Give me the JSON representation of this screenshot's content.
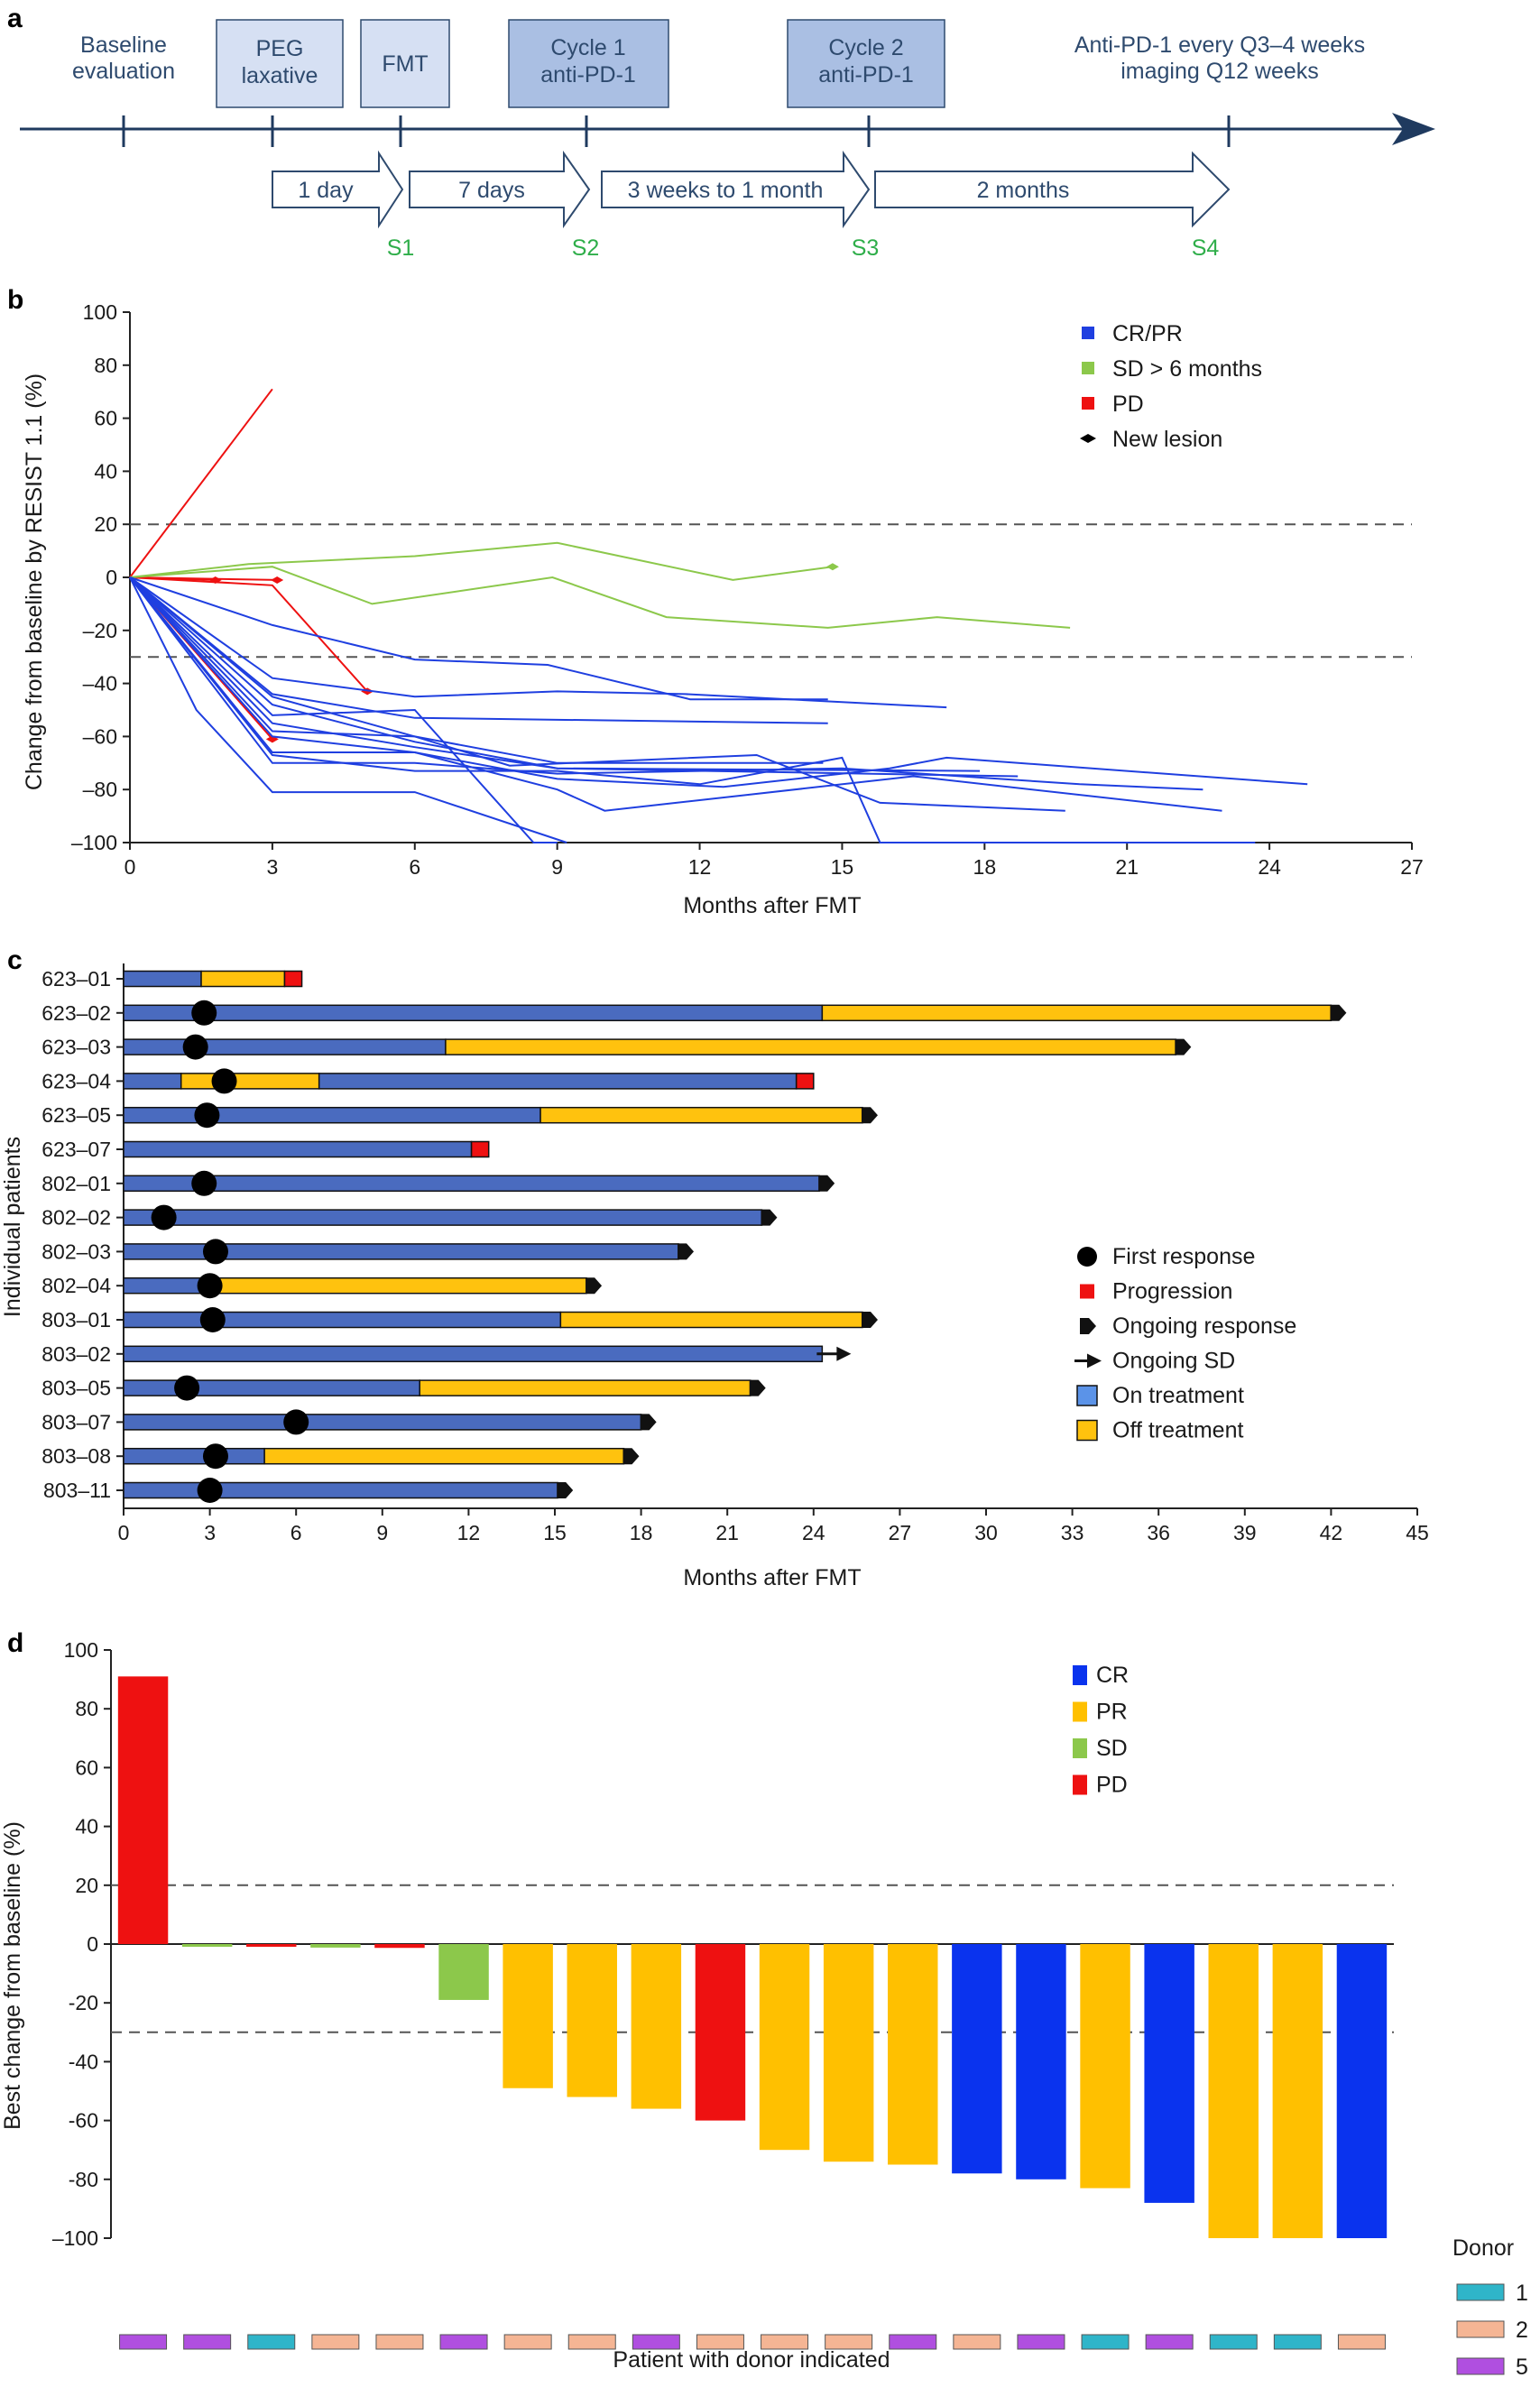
{
  "panels": {
    "a": {
      "letter": "a",
      "timeline_labels": {
        "baseline": [
          "Baseline",
          "evaluation"
        ],
        "peg": [
          "PEG",
          "laxative"
        ],
        "fmt": "FMT",
        "cycle1": [
          "Cycle 1",
          "anti-PD-1"
        ],
        "cycle2": [
          "Cycle 2",
          "anti-PD-1"
        ],
        "maintenance": [
          "Anti-PD-1 every Q3–4 weeks",
          "imaging Q12 weeks"
        ]
      },
      "intervals": [
        "1 day",
        "7 days",
        "3 weeks to 1 month",
        "2 months"
      ],
      "samples": [
        "S1",
        "S2",
        "S3",
        "S4"
      ]
    },
    "b": {
      "letter": "b"
    },
    "c": {
      "letter": "c"
    },
    "d": {
      "letter": "d"
    }
  },
  "colors": {
    "crpr_blue": "#1f3fe0",
    "sd_green": "#8cc84b",
    "pd_red": "#ee1111",
    "bar_blue": "#4a6bbf",
    "bar_orange": "#ffc20e",
    "pr_orange": "#ffc000",
    "cr_blue": "#0a33ee",
    "donor1": "#2fb5c9",
    "donor2": "#f5b594",
    "donor5": "#b04fe0",
    "timeline": "#1f3a5f"
  },
  "chart_data": [
    {
      "id": "b",
      "type": "line",
      "xlabel": "Months after FMT",
      "ylabel": "Change from baseline by RESIST 1.1 (%)",
      "xlim": [
        0,
        27
      ],
      "ylim": [
        -100,
        100
      ],
      "xticks": [
        0,
        3,
        6,
        9,
        12,
        15,
        18,
        21,
        24,
        27
      ],
      "yticks": [
        100,
        80,
        60,
        40,
        20,
        0,
        -20,
        -40,
        -60,
        -80,
        -100
      ],
      "yticklabels": [
        "100",
        "80",
        "60",
        "40",
        "20",
        "0",
        "–20",
        "–40",
        "–60",
        "–80",
        "–100"
      ],
      "reference_lines": [
        20,
        -30
      ],
      "legend": [
        {
          "label": "CR/PR",
          "kind": "square",
          "color": "#1f3fe0"
        },
        {
          "label": "SD > 6 months",
          "kind": "square",
          "color": "#8cc84b"
        },
        {
          "label": "PD",
          "kind": "square",
          "color": "#ee1111"
        },
        {
          "label": "New lesion",
          "kind": "diamond",
          "color": "#000000"
        }
      ],
      "series": [
        {
          "group": "PD",
          "points": [
            [
              0,
              0
            ],
            [
              3,
              71
            ]
          ]
        },
        {
          "group": "PD",
          "points": [
            [
              0,
              0
            ],
            [
              1.8,
              -1
            ]
          ],
          "new_lesion": true
        },
        {
          "group": "PD",
          "points": [
            [
              0,
              0
            ],
            [
              3.1,
              -1
            ]
          ],
          "new_lesion": true
        },
        {
          "group": "PD",
          "points": [
            [
              0,
              0
            ],
            [
              3,
              -3
            ],
            [
              5,
              -43
            ]
          ],
          "new_lesion": true
        },
        {
          "group": "PD",
          "points": [
            [
              0,
              0
            ],
            [
              3,
              -61
            ]
          ],
          "new_lesion": true
        },
        {
          "group": "SD",
          "points": [
            [
              0,
              0
            ],
            [
              2.5,
              5
            ],
            [
              6,
              8
            ],
            [
              9,
              13
            ],
            [
              12.7,
              -1
            ],
            [
              14.8,
              4
            ]
          ],
          "new_lesion": true
        },
        {
          "group": "SD",
          "points": [
            [
              0,
              0
            ],
            [
              3,
              4
            ],
            [
              5.1,
              -10
            ],
            [
              8.9,
              0
            ],
            [
              11.3,
              -15
            ],
            [
              14.7,
              -19
            ],
            [
              17,
              -15
            ],
            [
              19.8,
              -19
            ]
          ]
        },
        {
          "group": "CR/PR",
          "points": [
            [
              0,
              0
            ],
            [
              3,
              -18
            ],
            [
              6,
              -31
            ],
            [
              8.8,
              -33
            ],
            [
              11.8,
              -46
            ],
            [
              14.7,
              -46
            ]
          ]
        },
        {
          "group": "CR/PR",
          "points": [
            [
              0,
              0
            ],
            [
              3,
              -38
            ],
            [
              6,
              -45
            ],
            [
              9,
              -43
            ],
            [
              11.7,
              -44
            ],
            [
              17.2,
              -49
            ]
          ]
        },
        {
          "group": "CR/PR",
          "points": [
            [
              0,
              0
            ],
            [
              3,
              -44
            ],
            [
              6,
              -53
            ],
            [
              14.7,
              -55
            ]
          ]
        },
        {
          "group": "CR/PR",
          "points": [
            [
              0,
              0
            ],
            [
              3,
              -52
            ],
            [
              6,
              -50
            ],
            [
              8.5,
              -100
            ],
            [
              9,
              -100
            ]
          ]
        },
        {
          "group": "CR/PR",
          "points": [
            [
              0,
              0
            ],
            [
              3,
              -58
            ],
            [
              6,
              -60
            ],
            [
              9,
              -70
            ],
            [
              14.6,
              -70
            ]
          ]
        },
        {
          "group": "CR/PR",
          "points": [
            [
              0,
              0
            ],
            [
              3,
              -48
            ],
            [
              6,
              -62
            ],
            [
              9,
              -72
            ],
            [
              17.9,
              -73
            ]
          ]
        },
        {
          "group": "CR/PR",
          "points": [
            [
              0,
              0
            ],
            [
              3,
              -55
            ],
            [
              6,
              -64
            ],
            [
              9,
              -72
            ],
            [
              18.7,
              -75
            ]
          ]
        },
        {
          "group": "CR/PR",
          "points": [
            [
              0,
              0
            ],
            [
              3,
              -60
            ],
            [
              6,
              -66
            ],
            [
              9,
              -80
            ],
            [
              10,
              -88
            ],
            [
              13,
              -82
            ],
            [
              16.5,
              -75
            ],
            [
              23,
              -88
            ]
          ]
        },
        {
          "group": "CR/PR",
          "points": [
            [
              0,
              0
            ],
            [
              3,
              -66
            ],
            [
              6,
              -66
            ],
            [
              9,
              -76
            ],
            [
              12.5,
              -79
            ],
            [
              16,
              -72
            ],
            [
              17.2,
              -68
            ],
            [
              24.8,
              -78
            ]
          ]
        },
        {
          "group": "CR/PR",
          "points": [
            [
              0,
              0
            ],
            [
              3,
              -67
            ],
            [
              6,
              -73
            ],
            [
              9,
              -73
            ],
            [
              12,
              -78
            ],
            [
              15,
              -68
            ],
            [
              15.8,
              -100
            ],
            [
              23.7,
              -100
            ]
          ]
        },
        {
          "group": "CR/PR",
          "points": [
            [
              0,
              0
            ],
            [
              3,
              -70
            ],
            [
              6,
              -70
            ],
            [
              9,
              -74
            ],
            [
              15,
              -72
            ],
            [
              20,
              -78
            ],
            [
              22.6,
              -80
            ]
          ]
        },
        {
          "group": "CR/PR",
          "points": [
            [
              0,
              0
            ],
            [
              1.4,
              -50
            ],
            [
              3,
              -81
            ],
            [
              6,
              -81
            ],
            [
              9.2,
              -100
            ]
          ]
        },
        {
          "group": "CR/PR",
          "points": [
            [
              0,
              0
            ],
            [
              3,
              -45
            ],
            [
              6,
              -60
            ],
            [
              8,
              -71
            ],
            [
              13.2,
              -67
            ],
            [
              15.8,
              -85
            ],
            [
              19.7,
              -88
            ]
          ]
        }
      ]
    },
    {
      "id": "c",
      "type": "bar",
      "orientation": "horizontal",
      "xlabel": "Months after FMT",
      "ylabel": "Individual patients",
      "xlim": [
        0,
        45
      ],
      "xticks": [
        0,
        3,
        6,
        9,
        12,
        15,
        18,
        21,
        24,
        27,
        30,
        33,
        36,
        39,
        42,
        45
      ],
      "legend": [
        {
          "label": "First response",
          "kind": "circle"
        },
        {
          "label": "Progression",
          "kind": "square-red"
        },
        {
          "label": "Ongoing response",
          "kind": "pentagon"
        },
        {
          "label": "Ongoing SD",
          "kind": "arrow"
        },
        {
          "label": "On treatment",
          "kind": "box-blue"
        },
        {
          "label": "Off treatment",
          "kind": "box-orange"
        }
      ],
      "patients": [
        {
          "id": "623–01",
          "segments": [
            [
              "on",
              0,
              2.7
            ],
            [
              "off",
              2.7,
              5.6
            ]
          ],
          "end": "progression",
          "end_at": 6.2
        },
        {
          "id": "623–02",
          "segments": [
            [
              "on",
              0,
              24.3
            ],
            [
              "off",
              24.3,
              42
            ]
          ],
          "end": "ongoing",
          "end_at": 42.7,
          "first_response": 2.8
        },
        {
          "id": "623–03",
          "segments": [
            [
              "on",
              0,
              11.2
            ],
            [
              "off",
              11.2,
              36.6
            ]
          ],
          "end": "ongoing",
          "end_at": 37.3,
          "first_response": 2.5
        },
        {
          "id": "623–04",
          "segments": [
            [
              "on",
              0,
              2.0
            ],
            [
              "off",
              2.0,
              6.8
            ],
            [
              "on",
              6.8,
              23.4
            ]
          ],
          "end": "progression",
          "end_at": 24.0,
          "first_response": 3.5
        },
        {
          "id": "623–05",
          "segments": [
            [
              "on",
              0,
              14.5
            ],
            [
              "off",
              14.5,
              25.7
            ]
          ],
          "end": "ongoing",
          "end_at": 26.4,
          "first_response": 2.9
        },
        {
          "id": "623–07",
          "segments": [
            [
              "on",
              0,
              12.1
            ]
          ],
          "end": "progression",
          "end_at": 12.7
        },
        {
          "id": "802–01",
          "segments": [
            [
              "on",
              0,
              24.2
            ]
          ],
          "end": "ongoing",
          "end_at": 24.9,
          "first_response": 2.8
        },
        {
          "id": "802–02",
          "segments": [
            [
              "on",
              0,
              22.2
            ]
          ],
          "end": "ongoing",
          "end_at": 22.9,
          "first_response": 1.4
        },
        {
          "id": "802–03",
          "segments": [
            [
              "on",
              0,
              19.3
            ]
          ],
          "end": "ongoing",
          "end_at": 20.0,
          "first_response": 3.2
        },
        {
          "id": "802–04",
          "segments": [
            [
              "on",
              0,
              3.0
            ],
            [
              "off",
              3.0,
              16.1
            ]
          ],
          "end": "ongoing",
          "end_at": 16.8,
          "first_response": 3.0
        },
        {
          "id": "803–01",
          "segments": [
            [
              "on",
              0,
              15.2
            ],
            [
              "off",
              15.2,
              25.7
            ]
          ],
          "end": "ongoing",
          "end_at": 26.4,
          "first_response": 3.1
        },
        {
          "id": "803–02",
          "segments": [
            [
              "on",
              0,
              24.3
            ]
          ],
          "end": "ongoing_sd",
          "end_at": 25.3
        },
        {
          "id": "803–05",
          "segments": [
            [
              "on",
              0,
              10.3
            ],
            [
              "off",
              10.3,
              21.8
            ]
          ],
          "end": "ongoing",
          "end_at": 22.5,
          "first_response": 2.2
        },
        {
          "id": "803–07",
          "segments": [
            [
              "on",
              0,
              18.0
            ]
          ],
          "end": "ongoing",
          "end_at": 18.7,
          "first_response": 6.0
        },
        {
          "id": "803–08",
          "segments": [
            [
              "on",
              0,
              4.9
            ],
            [
              "off",
              4.9,
              17.4
            ]
          ],
          "end": "ongoing",
          "end_at": 18.0,
          "first_response": 3.2
        },
        {
          "id": "803–11",
          "segments": [
            [
              "on",
              0,
              15.1
            ]
          ],
          "end": "ongoing",
          "end_at": 15.8,
          "first_response": 3.0
        }
      ]
    },
    {
      "id": "d",
      "type": "bar",
      "xlabel": "Patient with donor indicated",
      "ylabel": "Best change from baseline (%)",
      "ylim": [
        -100,
        100
      ],
      "yticks": [
        100,
        80,
        60,
        40,
        20,
        0,
        -20,
        -40,
        -60,
        -80,
        -100
      ],
      "yticklabels": [
        "100",
        "80",
        "60",
        "40",
        "20",
        "0",
        "-20",
        "-40",
        "-60",
        "-80",
        "–100"
      ],
      "reference_lines": [
        20,
        -30
      ],
      "legend": [
        {
          "label": "CR",
          "color": "#0a33ee"
        },
        {
          "label": "PR",
          "color": "#ffc000"
        },
        {
          "label": "SD",
          "color": "#8cc84b"
        },
        {
          "label": "PD",
          "color": "#ee1111"
        }
      ],
      "donor_legend_title": "Donor",
      "donor_legend": [
        {
          "label": "1",
          "color": "#2fb5c9"
        },
        {
          "label": "2",
          "color": "#f5b594"
        },
        {
          "label": "5",
          "color": "#b04fe0"
        }
      ],
      "bars": [
        {
          "value": 91,
          "response": "PD",
          "donor": "5"
        },
        {
          "value": -0.5,
          "response": "SD",
          "donor": "5"
        },
        {
          "value": -0.8,
          "response": "PD",
          "donor": "1"
        },
        {
          "value": -1.2,
          "response": "SD",
          "donor": "2"
        },
        {
          "value": -1.3,
          "response": "PD",
          "donor": "2"
        },
        {
          "value": -19,
          "response": "SD",
          "donor": "5"
        },
        {
          "value": -49,
          "response": "PR",
          "donor": "2"
        },
        {
          "value": -52,
          "response": "PR",
          "donor": "2"
        },
        {
          "value": -56,
          "response": "PR",
          "donor": "5"
        },
        {
          "value": -60,
          "response": "PD",
          "donor": "2"
        },
        {
          "value": -70,
          "response": "PR",
          "donor": "2"
        },
        {
          "value": -74,
          "response": "PR",
          "donor": "2"
        },
        {
          "value": -75,
          "response": "PR",
          "donor": "5"
        },
        {
          "value": -78,
          "response": "CR",
          "donor": "2"
        },
        {
          "value": -80,
          "response": "CR",
          "donor": "5"
        },
        {
          "value": -83,
          "response": "PR",
          "donor": "1"
        },
        {
          "value": -88,
          "response": "CR",
          "donor": "5"
        },
        {
          "value": -100,
          "response": "PR",
          "donor": "1"
        },
        {
          "value": -100,
          "response": "PR",
          "donor": "1"
        },
        {
          "value": -100,
          "response": "CR",
          "donor": "2"
        }
      ]
    }
  ]
}
